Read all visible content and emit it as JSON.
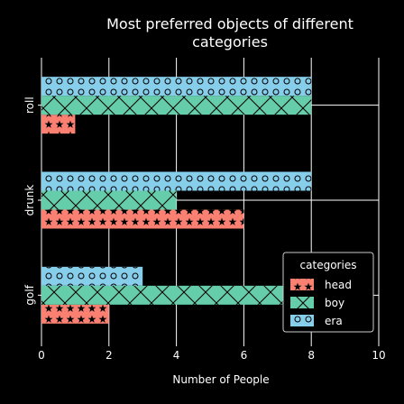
{
  "chart_data": {
    "type": "bar",
    "orientation": "horizontal",
    "title_lines": [
      "Most preferred objects of different",
      "categories"
    ],
    "xlabel": "Number of People",
    "ylabel": "",
    "categories": [
      "golf",
      "drunk",
      "roll"
    ],
    "xlim": [
      0,
      10
    ],
    "xticks": [
      0,
      2,
      4,
      6,
      8,
      10
    ],
    "grid": true,
    "legend": {
      "title": "categories",
      "placement": "bottom-right"
    },
    "series": [
      {
        "name": "head",
        "color": "#fa8072",
        "pattern": "stars",
        "values": [
          2,
          6,
          1
        ]
      },
      {
        "name": "boy",
        "color": "#66cdaa",
        "pattern": "crosses",
        "values": [
          8,
          4,
          8
        ]
      },
      {
        "name": "era",
        "color": "#87ceeb",
        "pattern": "circles",
        "values": [
          3,
          8,
          8
        ]
      }
    ]
  }
}
